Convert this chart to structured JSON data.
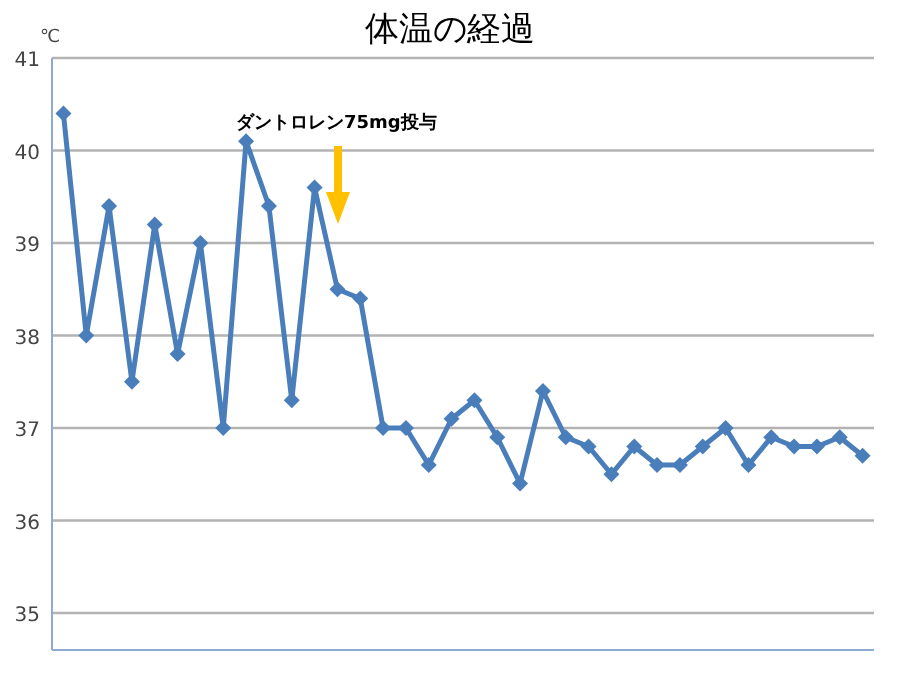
{
  "chart_data": {
    "type": "line",
    "title": "体温の経過",
    "ylabel": "℃",
    "categories": [
      null,
      null,
      null,
      null,
      null,
      null,
      null,
      null,
      null,
      null,
      null,
      null,
      null,
      null,
      null,
      null,
      null,
      null,
      null,
      null,
      null,
      null,
      null,
      null,
      null,
      null,
      null,
      null,
      null,
      null,
      null,
      null,
      null,
      null,
      null,
      null
    ],
    "series": [
      {
        "color": "#4a7ebb",
        "values": [
          40.4,
          38.0,
          39.4,
          37.5,
          39.2,
          37.8,
          39.0,
          37.0,
          40.1,
          39.4,
          37.3,
          39.6,
          38.5,
          38.4,
          37.0,
          37.0,
          36.6,
          37.1,
          37.3,
          36.9,
          36.4,
          37.4,
          36.9,
          36.8,
          36.5,
          36.8,
          36.6,
          36.6,
          36.8,
          37.0,
          36.6,
          36.9,
          36.8,
          36.8,
          36.9,
          36.7
        ]
      }
    ],
    "ylim": [
      34.6,
      41
    ],
    "yticks": [
      35,
      36,
      37,
      38,
      39,
      40,
      41
    ],
    "grid": "y",
    "marker": "diamond",
    "line_style": "solid",
    "annotations": [
      "ダントロレン75mg投与"
    ]
  }
}
